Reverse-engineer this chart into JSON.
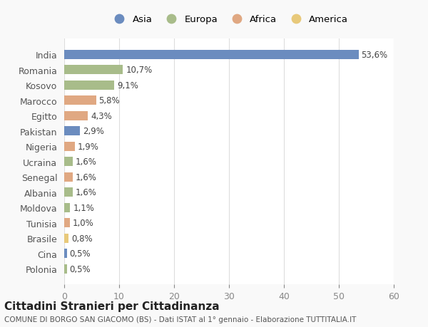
{
  "countries": [
    "India",
    "Romania",
    "Kosovo",
    "Marocco",
    "Egitto",
    "Pakistan",
    "Nigeria",
    "Ucraina",
    "Senegal",
    "Albania",
    "Moldova",
    "Tunisia",
    "Brasile",
    "Cina",
    "Polonia"
  ],
  "values": [
    53.6,
    10.7,
    9.1,
    5.8,
    4.3,
    2.9,
    1.9,
    1.6,
    1.6,
    1.6,
    1.1,
    1.0,
    0.8,
    0.5,
    0.5
  ],
  "labels": [
    "53,6%",
    "10,7%",
    "9,1%",
    "5,8%",
    "4,3%",
    "2,9%",
    "1,9%",
    "1,6%",
    "1,6%",
    "1,6%",
    "1,1%",
    "1,0%",
    "0,8%",
    "0,5%",
    "0,5%"
  ],
  "continents": [
    "Asia",
    "Europa",
    "Europa",
    "Africa",
    "Africa",
    "Asia",
    "Africa",
    "Europa",
    "Africa",
    "Europa",
    "Europa",
    "Africa",
    "America",
    "Asia",
    "Europa"
  ],
  "colors": {
    "Asia": "#6b8cbf",
    "Europa": "#a8bc8a",
    "Africa": "#e0a882",
    "America": "#e8c97a"
  },
  "legend_order": [
    "Asia",
    "Europa",
    "Africa",
    "America"
  ],
  "xlim": [
    0,
    60
  ],
  "xticks": [
    0,
    10,
    20,
    30,
    40,
    50,
    60
  ],
  "title": "Cittadini Stranieri per Cittadinanza",
  "subtitle": "COMUNE DI BORGO SAN GIACOMO (BS) - Dati ISTAT al 1° gennaio - Elaborazione TUTTITALIA.IT",
  "background_color": "#f9f9f9",
  "bar_background": "#ffffff"
}
